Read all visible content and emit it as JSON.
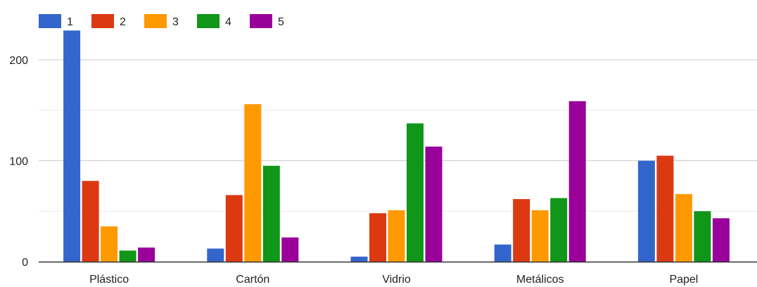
{
  "chart_data": {
    "type": "bar",
    "categories": [
      "Plástico",
      "Cartón",
      "Vidrio",
      "Metálicos",
      "Papel"
    ],
    "series": [
      {
        "name": "1",
        "color": "#3366cc",
        "values": [
          229,
          13,
          5,
          17,
          100
        ]
      },
      {
        "name": "2",
        "color": "#dc3912",
        "values": [
          80,
          66,
          48,
          62,
          105
        ]
      },
      {
        "name": "3",
        "color": "#ff9900",
        "values": [
          35,
          156,
          51,
          51,
          67
        ]
      },
      {
        "name": "4",
        "color": "#109618",
        "values": [
          11,
          95,
          137,
          63,
          50
        ]
      },
      {
        "name": "5",
        "color": "#990099",
        "values": [
          14,
          24,
          114,
          159,
          43
        ]
      }
    ],
    "yticks": [
      0,
      100,
      200
    ],
    "ylim": [
      0,
      236
    ],
    "grid": true,
    "legend_position": "top-left"
  }
}
